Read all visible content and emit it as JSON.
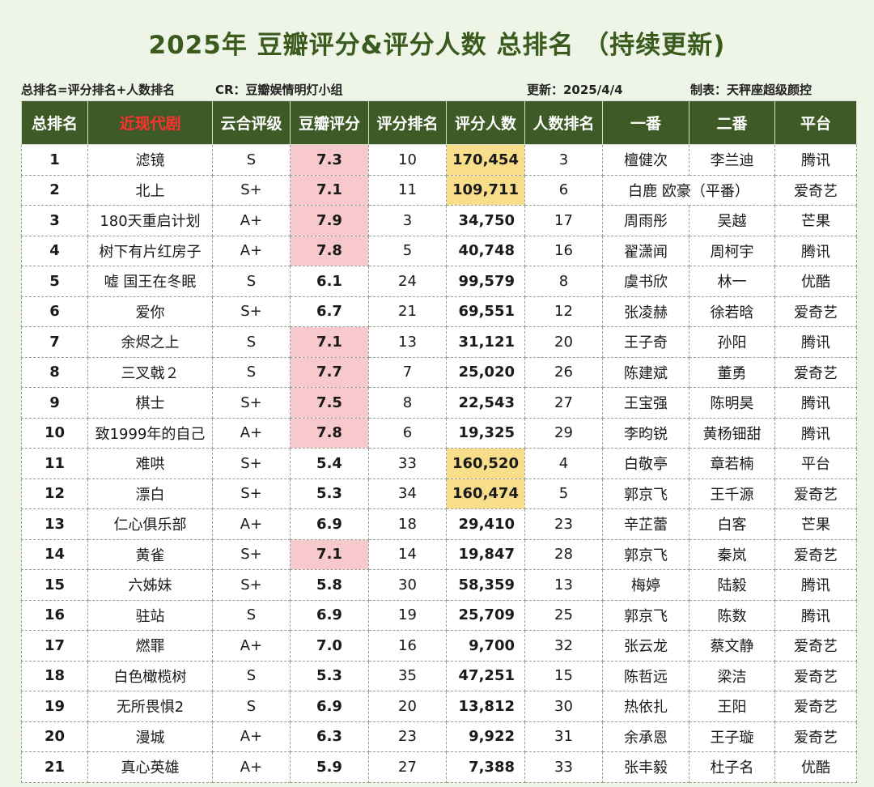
{
  "title": "2025年 豆瓣评分&评分人数 总排名 （持续更新)",
  "meta": {
    "formula": "总排名=评分排名+人数排名",
    "credit": "CR：豆瓣娱情明灯小组",
    "updated": "更新：2025/4/4",
    "maker": "制表：天秤座超级颜控"
  },
  "headers": [
    "总排名",
    "近现代剧",
    "云合评级",
    "豆瓣评分",
    "评分排名",
    "评分人数",
    "人数排名",
    "一番",
    "二番",
    "平台"
  ],
  "rows": [
    {
      "rank": "1",
      "title": "滤镜",
      "grade": "S",
      "score": "7.3",
      "score_rank": "10",
      "votes": "170,454",
      "votes_rank": "3",
      "lead1": "檀健次",
      "lead2": "李兰迪",
      "platform": "腾讯",
      "score_hl": true,
      "votes_hl": true
    },
    {
      "rank": "2",
      "title": "北上",
      "grade": "S+",
      "score": "7.1",
      "score_rank": "11",
      "votes": "109,711",
      "votes_rank": "6",
      "lead1": "白鹿 欧豪（平番）",
      "lead2": "",
      "platform": "爱奇艺",
      "score_hl": true,
      "votes_hl": true,
      "merged": true
    },
    {
      "rank": "3",
      "title": "180天重启计划",
      "grade": "A+",
      "score": "7.9",
      "score_rank": "3",
      "votes": "34,750",
      "votes_rank": "17",
      "lead1": "周雨彤",
      "lead2": "吴越",
      "platform": "芒果",
      "score_hl": true,
      "votes_hl": false
    },
    {
      "rank": "4",
      "title": "树下有片红房子",
      "grade": "A+",
      "score": "7.8",
      "score_rank": "5",
      "votes": "40,748",
      "votes_rank": "16",
      "lead1": "翟潇闻",
      "lead2": "周柯宇",
      "platform": "腾讯",
      "score_hl": true,
      "votes_hl": false
    },
    {
      "rank": "5",
      "title": "嘘 国王在冬眠",
      "grade": "S",
      "score": "6.1",
      "score_rank": "24",
      "votes": "99,579",
      "votes_rank": "8",
      "lead1": "虞书欣",
      "lead2": "林一",
      "platform": "优酷",
      "score_hl": false,
      "votes_hl": false
    },
    {
      "rank": "6",
      "title": "爱你",
      "grade": "S+",
      "score": "6.7",
      "score_rank": "21",
      "votes": "69,551",
      "votes_rank": "12",
      "lead1": "张凌赫",
      "lead2": "徐若晗",
      "platform": "爱奇艺",
      "score_hl": false,
      "votes_hl": false
    },
    {
      "rank": "7",
      "title": "余烬之上",
      "grade": "S",
      "score": "7.1",
      "score_rank": "13",
      "votes": "31,121",
      "votes_rank": "20",
      "lead1": "王子奇",
      "lead2": "孙阳",
      "platform": "腾讯",
      "score_hl": true,
      "votes_hl": false
    },
    {
      "rank": "8",
      "title": "三叉戟２",
      "grade": "S",
      "score": "7.7",
      "score_rank": "7",
      "votes": "25,020",
      "votes_rank": "26",
      "lead1": "陈建斌",
      "lead2": "董勇",
      "platform": "爱奇艺",
      "score_hl": true,
      "votes_hl": false
    },
    {
      "rank": "9",
      "title": "棋士",
      "grade": "S+",
      "score": "7.5",
      "score_rank": "8",
      "votes": "22,543",
      "votes_rank": "27",
      "lead1": "王宝强",
      "lead2": "陈明昊",
      "platform": "腾讯",
      "score_hl": true,
      "votes_hl": false
    },
    {
      "rank": "10",
      "title": "致1999年的自己",
      "grade": "A+",
      "score": "7.8",
      "score_rank": "6",
      "votes": "19,325",
      "votes_rank": "29",
      "lead1": "李昀锐",
      "lead2": "黄杨钿甜",
      "platform": "腾讯",
      "score_hl": true,
      "votes_hl": false
    },
    {
      "rank": "11",
      "title": "难哄",
      "grade": "S+",
      "score": "5.4",
      "score_rank": "33",
      "votes": "160,520",
      "votes_rank": "4",
      "lead1": "白敬亭",
      "lead2": "章若楠",
      "platform": "平台",
      "score_hl": false,
      "votes_hl": true
    },
    {
      "rank": "12",
      "title": "漂白",
      "grade": "S+",
      "score": "5.3",
      "score_rank": "34",
      "votes": "160,474",
      "votes_rank": "5",
      "lead1": "郭京飞",
      "lead2": "王千源",
      "platform": "爱奇艺",
      "score_hl": false,
      "votes_hl": true
    },
    {
      "rank": "13",
      "title": "仁心俱乐部",
      "grade": "A+",
      "score": "6.9",
      "score_rank": "18",
      "votes": "29,410",
      "votes_rank": "23",
      "lead1": "辛芷蕾",
      "lead2": "白客",
      "platform": "芒果",
      "score_hl": false,
      "votes_hl": false
    },
    {
      "rank": "14",
      "title": "黄雀",
      "grade": "S+",
      "score": "7.1",
      "score_rank": "14",
      "votes": "19,847",
      "votes_rank": "28",
      "lead1": "郭京飞",
      "lead2": "秦岚",
      "platform": "爱奇艺",
      "score_hl": true,
      "votes_hl": false
    },
    {
      "rank": "15",
      "title": "六姊妹",
      "grade": "S+",
      "score": "5.8",
      "score_rank": "30",
      "votes": "58,359",
      "votes_rank": "13",
      "lead1": "梅婷",
      "lead2": "陆毅",
      "platform": "腾讯",
      "score_hl": false,
      "votes_hl": false
    },
    {
      "rank": "16",
      "title": "驻站",
      "grade": "S",
      "score": "6.9",
      "score_rank": "19",
      "votes": "25,709",
      "votes_rank": "25",
      "lead1": "郭京飞",
      "lead2": "陈数",
      "platform": "腾讯",
      "score_hl": false,
      "votes_hl": false
    },
    {
      "rank": "17",
      "title": "燃罪",
      "grade": "A+",
      "score": "7.0",
      "score_rank": "16",
      "votes": "9,700",
      "votes_rank": "32",
      "lead1": "张云龙",
      "lead2": "蔡文静",
      "platform": "爱奇艺",
      "score_hl": false,
      "votes_hl": false
    },
    {
      "rank": "18",
      "title": "白色橄榄树",
      "grade": "S",
      "score": "5.3",
      "score_rank": "35",
      "votes": "47,251",
      "votes_rank": "15",
      "lead1": "陈哲远",
      "lead2": "梁洁",
      "platform": "爱奇艺",
      "score_hl": false,
      "votes_hl": false
    },
    {
      "rank": "19",
      "title": "无所畏惧2",
      "grade": "S",
      "score": "6.9",
      "score_rank": "20",
      "votes": "13,812",
      "votes_rank": "30",
      "lead1": "热依扎",
      "lead2": "王阳",
      "platform": "爱奇艺",
      "score_hl": false,
      "votes_hl": false
    },
    {
      "rank": "20",
      "title": "漫城",
      "grade": "A+",
      "score": "6.3",
      "score_rank": "23",
      "votes": "9,922",
      "votes_rank": "31",
      "lead1": "余承恩",
      "lead2": "王子璇",
      "platform": "爱奇艺",
      "score_hl": false,
      "votes_hl": false
    },
    {
      "rank": "21",
      "title": "真心英雄",
      "grade": "A+",
      "score": "5.9",
      "score_rank": "27",
      "votes": "7,388",
      "votes_rank": "33",
      "lead1": "张丰毅",
      "lead2": "杜子名",
      "platform": "优酷",
      "score_hl": false,
      "votes_hl": false
    }
  ],
  "colors": {
    "header_bg": "#3e5b27",
    "header_accent": "#ff3030",
    "score_highlight": "#f7c8cc",
    "votes_highlight": "#f8de8a",
    "page_bg": "#eef5e6"
  }
}
